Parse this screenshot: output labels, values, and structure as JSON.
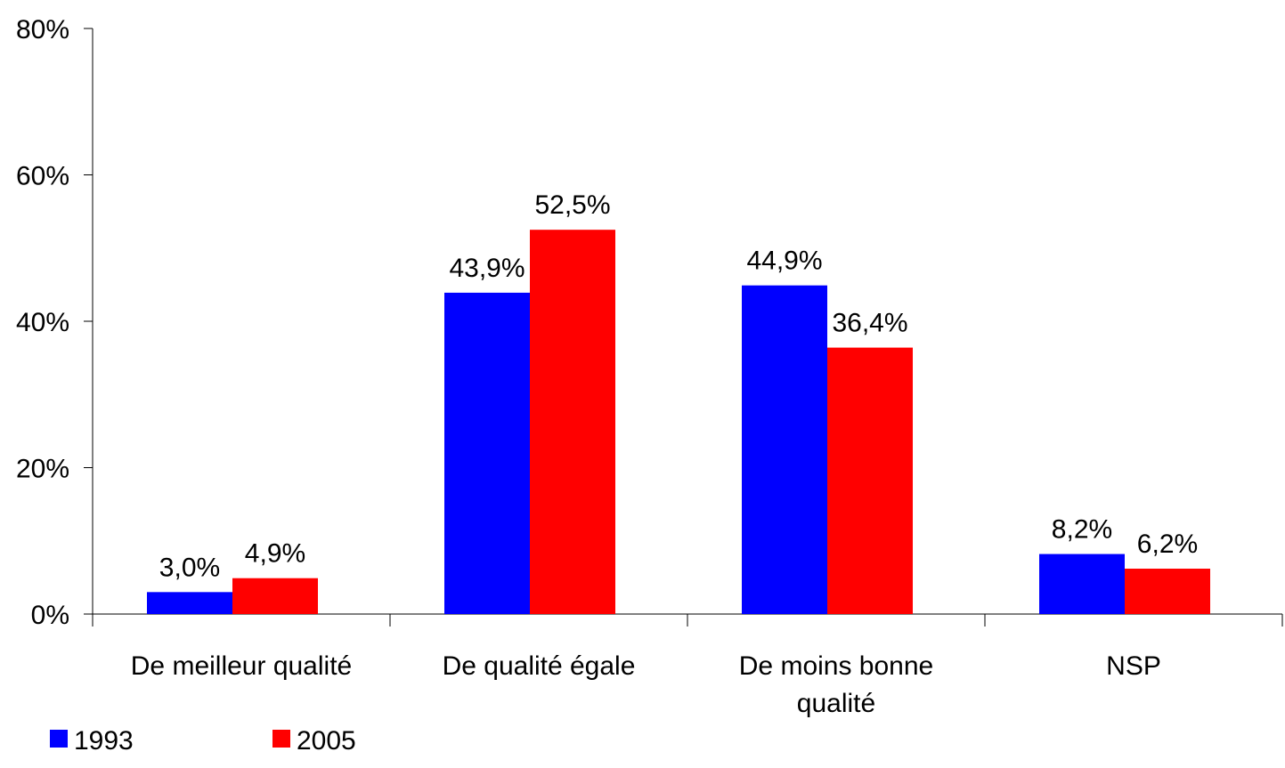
{
  "chart_data": {
    "type": "bar",
    "categories": [
      [
        "De meilleur qualité"
      ],
      [
        "De qualité égale"
      ],
      [
        "De moins bonne",
        "qualité"
      ],
      [
        "NSP"
      ]
    ],
    "series": [
      {
        "name": "1993",
        "color": "#0000ff",
        "values": [
          3.0,
          43.9,
          44.9,
          8.2
        ],
        "labels": [
          "3,0%",
          "43,9%",
          "44,9%",
          "8,2%"
        ]
      },
      {
        "name": "2005",
        "color": "#ff0000",
        "values": [
          4.9,
          52.5,
          36.4,
          6.2
        ],
        "labels": [
          "4,9%",
          "52,5%",
          "36,4%",
          "6,2%"
        ]
      }
    ],
    "ylim": [
      0,
      80
    ],
    "yticks": [
      0,
      20,
      40,
      60,
      80
    ],
    "ytick_labels": [
      "0%",
      "20%",
      "40%",
      "60%",
      "80%"
    ],
    "grid": false,
    "legend_position": "bottom-left",
    "xlabel": "",
    "ylabel": "",
    "title": ""
  }
}
